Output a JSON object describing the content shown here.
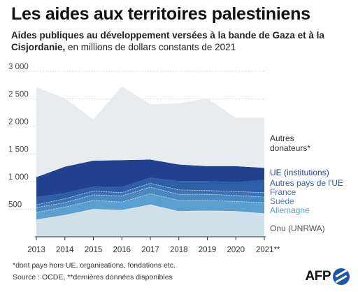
{
  "header": {
    "title": "Les aides aux territoires palestiniens",
    "subtitle_bold": "Aides publiques au développement versées à la bande de Gaza et à la Cisjordanie,",
    "subtitle_rest": " en millions de dollars constants de 2021"
  },
  "footer": {
    "note": "*dont pays hors UE, organisations, fondations etc.",
    "source": "Source : OCDE, **dernières données disponibles",
    "logo_text": "AFP"
  },
  "colors": {
    "onu": "#cfe0e9",
    "allemagne": "#5a9fcf",
    "suede": "#4a88c2",
    "france": "#3c73b4",
    "autres_ue": "#2e5fa6",
    "ue_institutions": "#22428f",
    "autres_donateurs": "#e9ecef",
    "grid": "#d4d4d4",
    "divider": "#e6f0f6"
  },
  "chart_data": {
    "type": "area",
    "stacked": true,
    "categories": [
      "2013",
      "2014",
      "2015",
      "2016",
      "2017",
      "2018",
      "2019",
      "2020",
      "2021**"
    ],
    "series": [
      {
        "name": "Onu (UNRWA)",
        "label_key": "onu",
        "values": [
          310,
          390,
          500,
          480,
          580,
          460,
          470,
          460,
          420
        ]
      },
      {
        "name": "Allemagne",
        "label_key": "allemagne",
        "values": [
          130,
          150,
          160,
          150,
          200,
          200,
          190,
          180,
          200
        ]
      },
      {
        "name": "Suède",
        "label_key": "suede",
        "values": [
          90,
          80,
          100,
          110,
          120,
          110,
          110,
          110,
          100
        ]
      },
      {
        "name": "France",
        "label_key": "france",
        "values": [
          50,
          70,
          70,
          60,
          70,
          80,
          70,
          70,
          80
        ]
      },
      {
        "name": "Autres pays de l'UE",
        "label_key": "autres_ue",
        "values": [
          140,
          100,
          80,
          100,
          100,
          160,
          170,
          170,
          230
        ]
      },
      {
        "name": "UE (institutions)",
        "label_key": "ue_institutions",
        "values": [
          360,
          480,
          470,
          490,
          330,
          300,
          270,
          290,
          220
        ]
      },
      {
        "name": "Autres donateurs*",
        "label_key": "autres_donateurs",
        "values": [
          1630,
          1240,
          750,
          1340,
          1000,
          1110,
          1230,
          880,
          910
        ]
      }
    ],
    "series_labels": {
      "onu": "Onu (UNRWA)",
      "allemagne": "Allemagne",
      "suede": "Suède",
      "france": "France",
      "autres_ue": "Autres pays de l'UE",
      "ue_institutions": "UE (institutions)",
      "autres_donateurs_line1": "Autres",
      "autres_donateurs_line2": "donateurs*"
    },
    "yticks": [
      "500",
      "1 000",
      "1 500",
      "2 000",
      "2 500",
      "3 000"
    ],
    "ylim": [
      0,
      3000
    ],
    "grid": true,
    "legend": "direct labels on right"
  }
}
